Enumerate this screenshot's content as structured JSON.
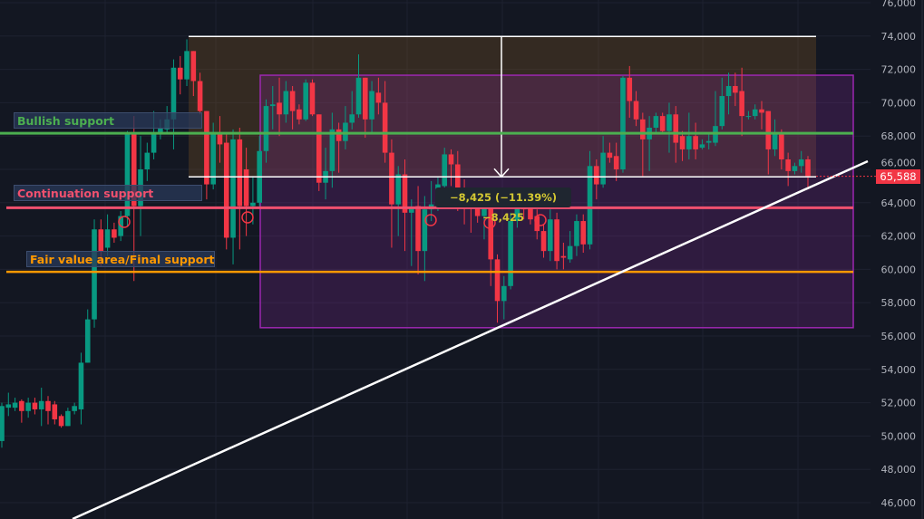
{
  "chart_data": {
    "type": "candlestick",
    "title": "",
    "xlabel": "",
    "ylabel": "",
    "ylim": [
      45500,
      76200
    ],
    "grid": true,
    "y_ticks": [
      {
        "value": 76000,
        "label": "76,000"
      },
      {
        "value": 74000,
        "label": "74,000"
      },
      {
        "value": 72000,
        "label": "72,000"
      },
      {
        "value": 70000,
        "label": "70,000"
      },
      {
        "value": 68000,
        "label": "68,000"
      },
      {
        "value": 66000,
        "label": "66,000"
      },
      {
        "value": 64000,
        "label": "64,000"
      },
      {
        "value": 62000,
        "label": "62,000"
      },
      {
        "value": 60000,
        "label": "60,000"
      },
      {
        "value": 58000,
        "label": "58,000"
      },
      {
        "value": 56000,
        "label": "56,000"
      },
      {
        "value": 54000,
        "label": "54,000"
      },
      {
        "value": 52000,
        "label": "52,000"
      },
      {
        "value": 50000,
        "label": "50,000"
      },
      {
        "value": 48000,
        "label": "48,000"
      },
      {
        "value": 46000,
        "label": "46,000"
      }
    ],
    "last_price": {
      "value": 65588,
      "label": "65,588",
      "color": "#f23645"
    },
    "colors": {
      "up": "#089981",
      "down": "#f23645",
      "background": "#131722"
    },
    "ohlc": [
      [
        49700,
        52000,
        49300,
        51800
      ],
      [
        51700,
        52600,
        51200,
        51900
      ],
      [
        51700,
        52300,
        51500,
        52000
      ],
      [
        52100,
        52200,
        50800,
        51500
      ],
      [
        51500,
        52300,
        51100,
        52000
      ],
      [
        52000,
        52300,
        51300,
        51600
      ],
      [
        51600,
        52900,
        50600,
        52100
      ],
      [
        52100,
        52400,
        50700,
        51500
      ],
      [
        51900,
        52100,
        50700,
        51000
      ],
      [
        51200,
        51300,
        50500,
        50600
      ],
      [
        50600,
        51700,
        50600,
        51500
      ],
      [
        51500,
        52000,
        51300,
        51800
      ],
      [
        51600,
        55000,
        50700,
        54400
      ],
      [
        54400,
        57600,
        54400,
        57000
      ],
      [
        57000,
        63000,
        56500,
        62400
      ],
      [
        62400,
        63000,
        60200,
        61100
      ],
      [
        61300,
        63300,
        60800,
        62400
      ],
      [
        62400,
        62800,
        61600,
        61900
      ],
      [
        62000,
        63500,
        61700,
        63200
      ],
      [
        63200,
        68300,
        62600,
        68200
      ],
      [
        68200,
        69200,
        59300,
        63800
      ],
      [
        63800,
        68000,
        62000,
        66000
      ],
      [
        66000,
        67600,
        65300,
        67000
      ],
      [
        67000,
        69500,
        66600,
        68200
      ],
      [
        68200,
        69000,
        67800,
        68500
      ],
      [
        68400,
        69800,
        68200,
        69000
      ],
      [
        69000,
        72600,
        67200,
        72100
      ],
      [
        72100,
        72800,
        70500,
        71400
      ],
      [
        71400,
        73800,
        71000,
        73100
      ],
      [
        73100,
        73100,
        70400,
        71300
      ],
      [
        71300,
        71800,
        69300,
        69500
      ],
      [
        69500,
        69500,
        64200,
        65100
      ],
      [
        65100,
        68800,
        64800,
        68200
      ],
      [
        68200,
        69200,
        66400,
        67500
      ],
      [
        67600,
        68200,
        61200,
        61900
      ],
      [
        61900,
        68400,
        60300,
        67800
      ],
      [
        67800,
        68500,
        61200,
        63800
      ],
      [
        66000,
        67300,
        62000,
        63800
      ],
      [
        63800,
        65600,
        62700,
        64000
      ],
      [
        64000,
        68000,
        63800,
        67100
      ],
      [
        67100,
        70200,
        66400,
        69800
      ],
      [
        69800,
        71000,
        68400,
        69900
      ],
      [
        70000,
        71500,
        68000,
        69300
      ],
      [
        69300,
        71300,
        68800,
        70700
      ],
      [
        70700,
        71000,
        68400,
        69500
      ],
      [
        69600,
        69900,
        68700,
        69000
      ],
      [
        69000,
        71400,
        68900,
        71200
      ],
      [
        71200,
        71400,
        69200,
        69300
      ],
      [
        69300,
        69300,
        64700,
        65200
      ],
      [
        65200,
        67300,
        64200,
        65900
      ],
      [
        65900,
        69400,
        64900,
        68400
      ],
      [
        68400,
        68800,
        65800,
        67700
      ],
      [
        67700,
        69800,
        67200,
        68800
      ],
      [
        68800,
        70700,
        68400,
        69300
      ],
      [
        69300,
        72900,
        69100,
        71500
      ],
      [
        71500,
        71500,
        67900,
        69000
      ],
      [
        69000,
        71300,
        68200,
        70700
      ],
      [
        70600,
        71500,
        69300,
        70000
      ],
      [
        70000,
        71300,
        66400,
        67000
      ],
      [
        67000,
        67800,
        61300,
        63900
      ],
      [
        63900,
        66200,
        62000,
        65700
      ],
      [
        65700,
        66600,
        61100,
        63400
      ],
      [
        63400,
        64200,
        60200,
        63700
      ],
      [
        63800,
        65000,
        59700,
        61100
      ],
      [
        61100,
        64400,
        59300,
        63600
      ],
      [
        63600,
        65300,
        62900,
        63900
      ],
      [
        63800,
        65500,
        63500,
        65100
      ],
      [
        65000,
        67300,
        64600,
        66900
      ],
      [
        66900,
        67200,
        65000,
        66300
      ],
      [
        66300,
        67100,
        63500,
        64900
      ],
      [
        64900,
        65400,
        62700,
        64200
      ],
      [
        64200,
        64500,
        62200,
        63700
      ],
      [
        63800,
        64500,
        62800,
        63200
      ],
      [
        63200,
        64600,
        61800,
        63800
      ],
      [
        63800,
        64600,
        59000,
        60600
      ],
      [
        60600,
        60900,
        56800,
        58100
      ],
      [
        58100,
        59600,
        57000,
        59000
      ],
      [
        59000,
        63400,
        58800,
        62900
      ],
      [
        62900,
        64400,
        62500,
        63800
      ],
      [
        63800,
        64500,
        63000,
        63600
      ],
      [
        63800,
        64800,
        62700,
        63000
      ],
      [
        63200,
        63600,
        61800,
        62300
      ],
      [
        62300,
        62700,
        60700,
        61100
      ],
      [
        61100,
        63600,
        60500,
        63000
      ],
      [
        63000,
        63400,
        60000,
        60500
      ],
      [
        60800,
        61600,
        60000,
        60700
      ],
      [
        60600,
        62300,
        60400,
        61400
      ],
      [
        61400,
        63300,
        60800,
        62900
      ],
      [
        62900,
        63300,
        61000,
        61500
      ],
      [
        61500,
        67100,
        61200,
        66200
      ],
      [
        66200,
        66600,
        64200,
        65100
      ],
      [
        65100,
        68000,
        64900,
        67000
      ],
      [
        67000,
        67600,
        66400,
        66700
      ],
      [
        66800,
        67600,
        65300,
        66000
      ],
      [
        66000,
        71600,
        65800,
        71500
      ],
      [
        71500,
        72200,
        69100,
        70100
      ],
      [
        70100,
        70700,
        68600,
        69000
      ],
      [
        69000,
        69400,
        65600,
        67800
      ],
      [
        67800,
        69200,
        65900,
        68500
      ],
      [
        68500,
        69400,
        68100,
        69200
      ],
      [
        69200,
        69400,
        68100,
        68300
      ],
      [
        68300,
        70000,
        67000,
        69300
      ],
      [
        69300,
        69800,
        66400,
        67600
      ],
      [
        68000,
        68300,
        66500,
        67200
      ],
      [
        67200,
        69400,
        66600,
        68000
      ],
      [
        68000,
        68800,
        66600,
        67200
      ],
      [
        67300,
        67800,
        67200,
        67500
      ],
      [
        67600,
        68100,
        67200,
        67700
      ],
      [
        67600,
        70700,
        67400,
        68600
      ],
      [
        68600,
        71500,
        68400,
        70400
      ],
      [
        70400,
        71800,
        69300,
        71000
      ],
      [
        71000,
        71800,
        69800,
        70600
      ],
      [
        70700,
        72100,
        68000,
        69200
      ],
      [
        69200,
        69500,
        69000,
        69200
      ],
      [
        69200,
        69900,
        69000,
        69600
      ],
      [
        69600,
        70100,
        68400,
        69400
      ],
      [
        69500,
        69500,
        65700,
        67200
      ],
      [
        67200,
        69000,
        66800,
        68200
      ],
      [
        68100,
        68400,
        66000,
        66600
      ],
      [
        66600,
        67000,
        65000,
        65900
      ],
      [
        65900,
        66400,
        65700,
        66200
      ],
      [
        66200,
        67100,
        65800,
        66600
      ],
      [
        66600,
        66800,
        64900,
        65600
      ]
    ],
    "annotations": {
      "bullish_support": {
        "label": "Bullish support",
        "price": 68170,
        "color": "#4caf50"
      },
      "continuation_support": {
        "label": "Continuation support",
        "price": 63700,
        "color": "#f0506e"
      },
      "fair_value_support": {
        "label": "Fair value area/Final support",
        "price": 59850,
        "color": "#ff9800"
      },
      "range_box": {
        "top": 71650,
        "bottom": 56500,
        "color": "#9c27b0"
      },
      "measure": {
        "from": 73975,
        "to": 65550,
        "label": "−8,425 (−11.39%) −8,425",
        "color": "#d4c832"
      },
      "trendline": {
        "color": "#ffffff"
      },
      "circle_markers_color": "#f23645"
    }
  }
}
